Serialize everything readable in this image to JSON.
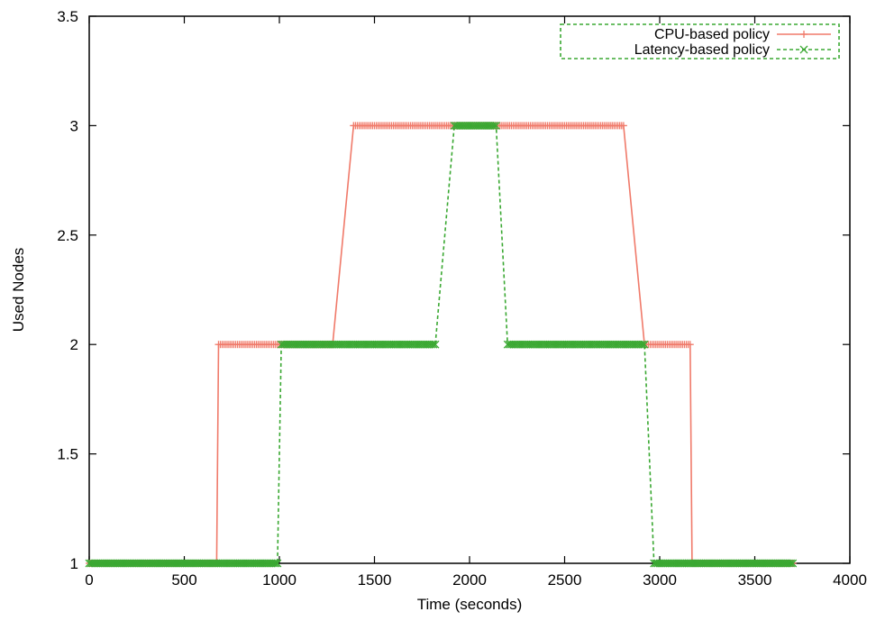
{
  "chart_data": {
    "type": "line",
    "title": "",
    "xlabel": "Time (seconds)",
    "ylabel": "Used Nodes",
    "xlim": [
      0,
      4000
    ],
    "ylim": [
      1,
      3.5
    ],
    "xticks": [
      0,
      500,
      1000,
      1500,
      2000,
      2500,
      3000,
      3500,
      4000
    ],
    "yticks": [
      1,
      1.5,
      2,
      2.5,
      3,
      3.5
    ],
    "ytick_labels": [
      "1",
      "1.5",
      "2",
      "2.5",
      "3",
      "3.5"
    ],
    "grid": false,
    "legend_position": "top-right",
    "series": [
      {
        "name": "CPU-based policy",
        "color": "#f07a6a",
        "style": "solid",
        "marker": "plus",
        "x": [
          0,
          670,
          680,
          1280,
          1390,
          2810,
          2920,
          3160,
          3170,
          3700
        ],
        "y": [
          1,
          1,
          2,
          2,
          3,
          3,
          2,
          2,
          1,
          1
        ]
      },
      {
        "name": "Latency-based policy",
        "color": "#3aa832",
        "style": "dashed",
        "marker": "x",
        "x": [
          0,
          990,
          1010,
          1820,
          1920,
          2140,
          2200,
          2920,
          2970,
          3700
        ],
        "y": [
          1,
          1,
          2,
          2,
          3,
          3,
          2,
          2,
          1,
          1
        ]
      }
    ]
  }
}
